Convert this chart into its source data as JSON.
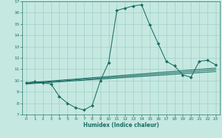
{
  "xlabel": "Humidex (Indice chaleur)",
  "bg_color": "#c5e8e0",
  "line_color": "#1a6e64",
  "grid_color": "#9ecfc5",
  "xlim": [
    -0.5,
    23.5
  ],
  "ylim": [
    7,
    17
  ],
  "xticks": [
    0,
    1,
    2,
    3,
    4,
    5,
    6,
    7,
    8,
    9,
    10,
    11,
    12,
    13,
    14,
    15,
    16,
    17,
    18,
    19,
    20,
    21,
    22,
    23
  ],
  "yticks": [
    7,
    8,
    9,
    10,
    11,
    12,
    13,
    14,
    15,
    16,
    17
  ],
  "series": [
    {
      "x": [
        0,
        1,
        2,
        3,
        4,
        5,
        6,
        7,
        8,
        9,
        10,
        11,
        12,
        13,
        14,
        15,
        16,
        17,
        18,
        19,
        20,
        21,
        22,
        23
      ],
      "y": [
        9.8,
        9.9,
        9.8,
        9.7,
        8.6,
        8.0,
        7.6,
        7.4,
        7.8,
        10.0,
        11.6,
        16.2,
        16.4,
        16.6,
        16.7,
        14.9,
        13.3,
        11.7,
        11.3,
        10.5,
        10.3,
        11.7,
        11.8,
        11.4
      ],
      "marker": true
    },
    {
      "x": [
        0,
        23
      ],
      "y": [
        9.8,
        11.1
      ],
      "marker": false
    },
    {
      "x": [
        0,
        23
      ],
      "y": [
        9.75,
        10.95
      ],
      "marker": false
    },
    {
      "x": [
        0,
        23
      ],
      "y": [
        9.7,
        10.8
      ],
      "marker": false
    }
  ]
}
